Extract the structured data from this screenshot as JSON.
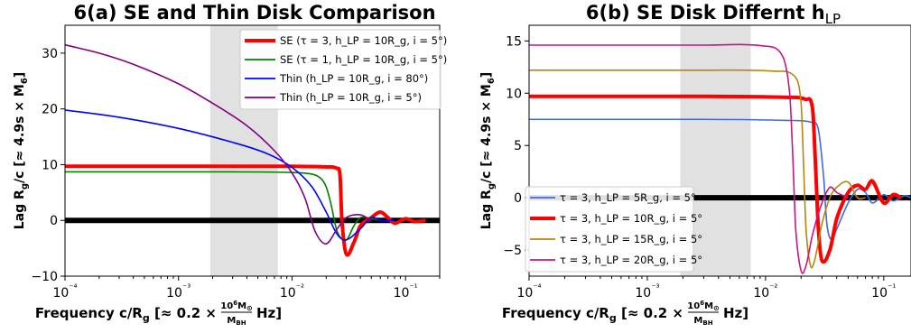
{
  "chart_data": [
    {
      "type": "line",
      "title": "6(a) SE and Thin Disk Comparison",
      "ylabel": "Lag R_g/c [≈4.9s × M_6]",
      "xlabel": "Frequency c/R_g [≈0.2 × 10^6 M_⊙ / M_BH Hz]",
      "xscale": "log",
      "xlim": [
        0.0001,
        0.2
      ],
      "ylim": [
        -10,
        35
      ],
      "yticks": [
        "−10",
        "0",
        "10",
        "20",
        "30"
      ],
      "xticks": [
        "10⁻⁴",
        "10⁻³",
        "10⁻²",
        "10⁻¹"
      ],
      "shaded_band": [
        0.0019,
        0.0075
      ],
      "legend_position": "top-right",
      "series": [
        {
          "name": "SE (τ = 3, h_LP = 10R_g, i = 5°)",
          "color": "#ff0000",
          "x": [
            0.0001,
            0.003,
            0.01,
            0.02,
            0.025,
            0.0265,
            0.0275,
            0.03,
            0.035,
            0.04,
            0.05,
            0.06,
            0.07,
            0.08,
            0.1,
            0.12,
            0.15
          ],
          "y": [
            9.7,
            9.7,
            9.7,
            9.6,
            9.3,
            8.0,
            0.0,
            -6.0,
            -4.0,
            -1.0,
            0.5,
            1.5,
            0.5,
            -0.5,
            0.3,
            -0.2,
            0.0
          ]
        },
        {
          "name": "SE (τ = 1, h_LP = 10R_g, i = 5°)",
          "color": "#008000",
          "x": [
            0.0001,
            0.003,
            0.01,
            0.015,
            0.018,
            0.02,
            0.022,
            0.025,
            0.03,
            0.035,
            0.04,
            0.05,
            0.06
          ],
          "y": [
            8.7,
            8.7,
            8.6,
            8.3,
            7.5,
            6.0,
            3.0,
            -2.0,
            -3.5,
            -1.0,
            0.5,
            0.3,
            0.0
          ]
        },
        {
          "name": "Thin (h_LP = 10R_g, i = 80°)",
          "color": "#0000ff",
          "x": [
            0.0001,
            0.0003,
            0.001,
            0.003,
            0.006,
            0.01,
            0.015,
            0.02,
            0.025,
            0.03,
            0.04,
            0.05,
            0.06,
            0.08
          ],
          "y": [
            19.8,
            18.5,
            16.5,
            14.0,
            12.0,
            9.5,
            6.0,
            1.5,
            -2.5,
            -3.5,
            -1.5,
            0.5,
            0.0,
            0.0
          ]
        },
        {
          "name": "Thin (h_LP = 10R_g, i = 5°)",
          "color": "#800080",
          "x": [
            0.0001,
            0.0002,
            0.0004,
            0.001,
            0.002,
            0.004,
            0.007,
            0.01,
            0.013,
            0.016,
            0.02,
            0.025,
            0.03,
            0.04,
            0.05
          ],
          "y": [
            31.5,
            30.0,
            28.0,
            24.5,
            21.0,
            17.0,
            12.5,
            8.5,
            4.0,
            -2.0,
            -4.2,
            -1.5,
            0.5,
            1.0,
            0.0
          ]
        }
      ]
    },
    {
      "type": "line",
      "title": "6(b) SE Disk Differnt h",
      "title_sub": "LP",
      "ylabel": "Lag R_g/c [≈4.9s × M_6]",
      "xlabel": "Frequency c/R_g [≈0.2 × 10^6 M_⊙ / M_BH Hz]",
      "xscale": "log",
      "xlim": [
        0.0001,
        0.17
      ],
      "ylim": [
        -7.5,
        16.5
      ],
      "yticks": [
        "−5",
        "0",
        "5",
        "10",
        "15"
      ],
      "xticks": [
        "10⁻⁴",
        "10⁻³",
        "10⁻²",
        "10⁻¹"
      ],
      "shaded_band": [
        0.0019,
        0.0075
      ],
      "legend_position": "lower-left",
      "series": [
        {
          "name": "τ = 3, h_LP = 5R_g, i = 5°",
          "color": "#4169e1",
          "x": [
            0.0001,
            0.003,
            0.015,
            0.025,
            0.028,
            0.031,
            0.033,
            0.036,
            0.04,
            0.05,
            0.06,
            0.07,
            0.08,
            0.1,
            0.12,
            0.15,
            0.17
          ],
          "y": [
            7.5,
            7.5,
            7.4,
            7.2,
            6.5,
            2.0,
            -2.5,
            -4.0,
            -3.0,
            -0.5,
            0.8,
            0.5,
            -0.5,
            0.3,
            -0.3,
            0.2,
            0.0
          ]
        },
        {
          "name": "τ = 3, h_LP = 10R_g, i = 5°",
          "color": "#ff0000",
          "x": [
            0.0001,
            0.003,
            0.015,
            0.022,
            0.025,
            0.0265,
            0.028,
            0.03,
            0.035,
            0.04,
            0.05,
            0.06,
            0.07,
            0.08,
            0.1,
            0.12,
            0.14
          ],
          "y": [
            9.7,
            9.7,
            9.6,
            9.4,
            8.5,
            3.0,
            -3.0,
            -6.0,
            -5.0,
            -2.0,
            0.5,
            1.2,
            0.8,
            1.6,
            -0.5,
            0.3,
            0.0
          ]
        },
        {
          "name": "τ = 3, h_LP = 15R_g, i = 5°",
          "color": "#b8860b",
          "x": [
            0.0001,
            0.003,
            0.012,
            0.018,
            0.02,
            0.021,
            0.022,
            0.024,
            0.026,
            0.03,
            0.035,
            0.04,
            0.05,
            0.06,
            0.07
          ],
          "y": [
            12.2,
            12.2,
            12.1,
            11.5,
            9.0,
            3.0,
            -3.0,
            -6.5,
            -6.0,
            -2.5,
            0.0,
            1.0,
            1.5,
            0.0,
            0.0
          ]
        },
        {
          "name": "τ = 3, h_LP = 20R_g, i = 5°",
          "color": "#c71585",
          "x": [
            0.0001,
            0.003,
            0.01,
            0.014,
            0.016,
            0.017,
            0.018,
            0.02,
            0.022,
            0.025,
            0.03,
            0.035,
            0.04,
            0.05
          ],
          "y": [
            14.6,
            14.6,
            14.5,
            13.5,
            10.0,
            4.0,
            -3.0,
            -7.0,
            -6.5,
            -3.5,
            -0.5,
            1.0,
            0.5,
            0.0
          ]
        }
      ]
    }
  ]
}
